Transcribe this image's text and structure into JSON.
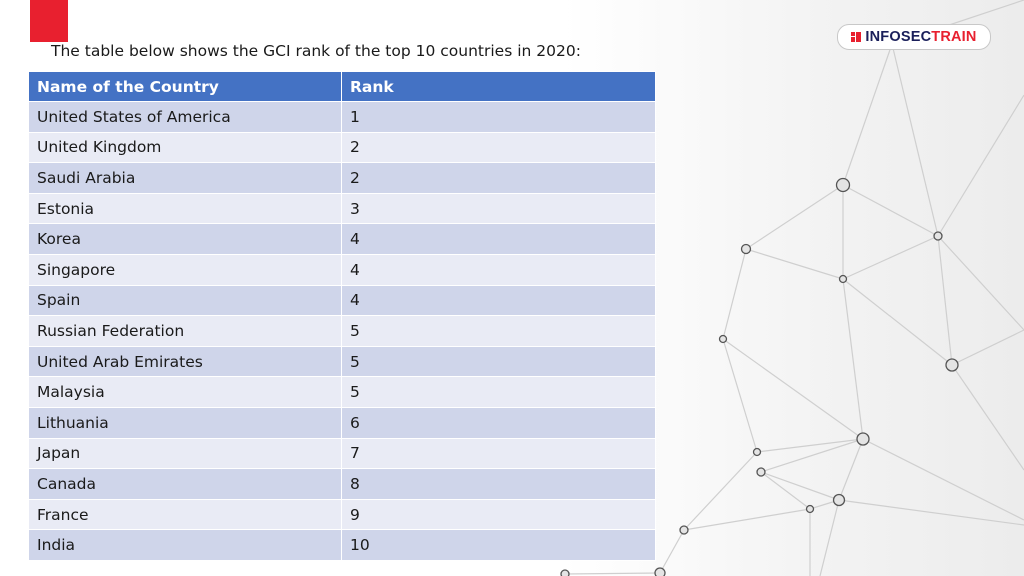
{
  "logo": {
    "text_part1": "INFOSEC",
    "text_part2": "TRAIN",
    "icon": "infosectrain-logo-icon"
  },
  "heading": "The table below shows the GCI rank of the top 10 countries in 2020:",
  "table": {
    "headers": [
      "Name of the Country",
      "Rank"
    ],
    "rows": [
      [
        "United States of America",
        "1"
      ],
      [
        "United Kingdom",
        "2"
      ],
      [
        "Saudi Arabia",
        "2"
      ],
      [
        "Estonia",
        "3"
      ],
      [
        "Korea",
        "4"
      ],
      [
        "Singapore",
        "4"
      ],
      [
        "Spain",
        "4"
      ],
      [
        "Russian Federation",
        "5"
      ],
      [
        "United Arab Emirates",
        "5"
      ],
      [
        "Malaysia",
        "5"
      ],
      [
        "Lithuania",
        "6"
      ],
      [
        "Japan",
        "7"
      ],
      [
        "Canada",
        "8"
      ],
      [
        "France",
        "9"
      ],
      [
        "India",
        "10"
      ]
    ]
  },
  "colors": {
    "accent": "#e8202f",
    "header_bg": "#4472c4",
    "row_odd": "#cfd5ea",
    "row_even": "#e9ebf5",
    "logo_dark": "#1a1f5a"
  }
}
